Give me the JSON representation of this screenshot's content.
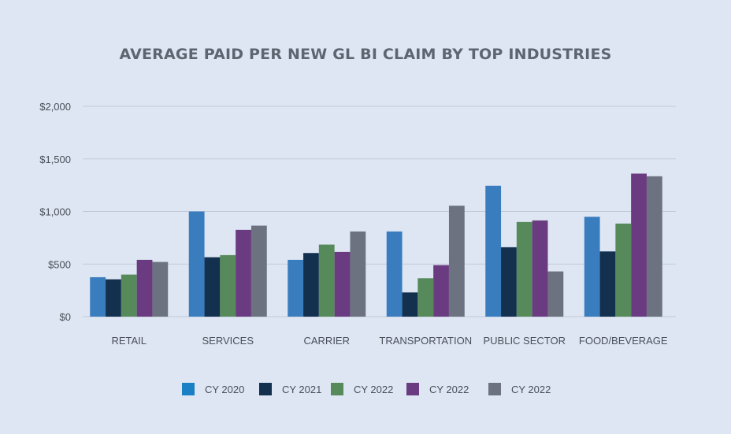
{
  "chart_data": {
    "type": "bar",
    "title": "AVERAGE PAID PER NEW GL BI CLAIM BY TOP INDUSTRIES",
    "categories": [
      "RETAIL",
      "SERVICES",
      "CARRIER",
      "TRANSPORTATION",
      "PUBLIC SECTOR",
      "FOOD/BEVERAGE"
    ],
    "series": [
      {
        "name": "CY 2020",
        "color": "#3a7dbf",
        "legend_color": "#1a7fc4",
        "values": [
          375,
          1000,
          540,
          810,
          1245,
          950
        ]
      },
      {
        "name": "CY 2021",
        "color": "#13304f",
        "legend_color": "#13304f",
        "values": [
          355,
          565,
          605,
          230,
          660,
          620
        ]
      },
      {
        "name": "CY 2022",
        "color": "#568a5b",
        "legend_color": "#568a5b",
        "values": [
          400,
          585,
          685,
          365,
          900,
          885
        ]
      },
      {
        "name": "CY 2022",
        "color": "#6a3b80",
        "legend_color": "#6a3b80",
        "values": [
          540,
          825,
          615,
          490,
          915,
          1360
        ]
      },
      {
        "name": "CY 2022",
        "color": "#6c7280",
        "legend_color": "#6c7280",
        "values": [
          520,
          865,
          810,
          1055,
          430,
          1335
        ]
      }
    ],
    "ylim": [
      0,
      2000
    ],
    "yticks": [
      0,
      500,
      1000,
      1500,
      2000
    ],
    "ytick_labels": [
      "$0",
      "$500",
      "$1,000",
      "$1,500",
      "$2,000"
    ],
    "grid": true,
    "legend_position": "bottom"
  },
  "colors": {
    "background": "#dde6f2",
    "grid": "#c3cbd8",
    "axis_text": "#4a505a",
    "title": "#5d6570"
  }
}
